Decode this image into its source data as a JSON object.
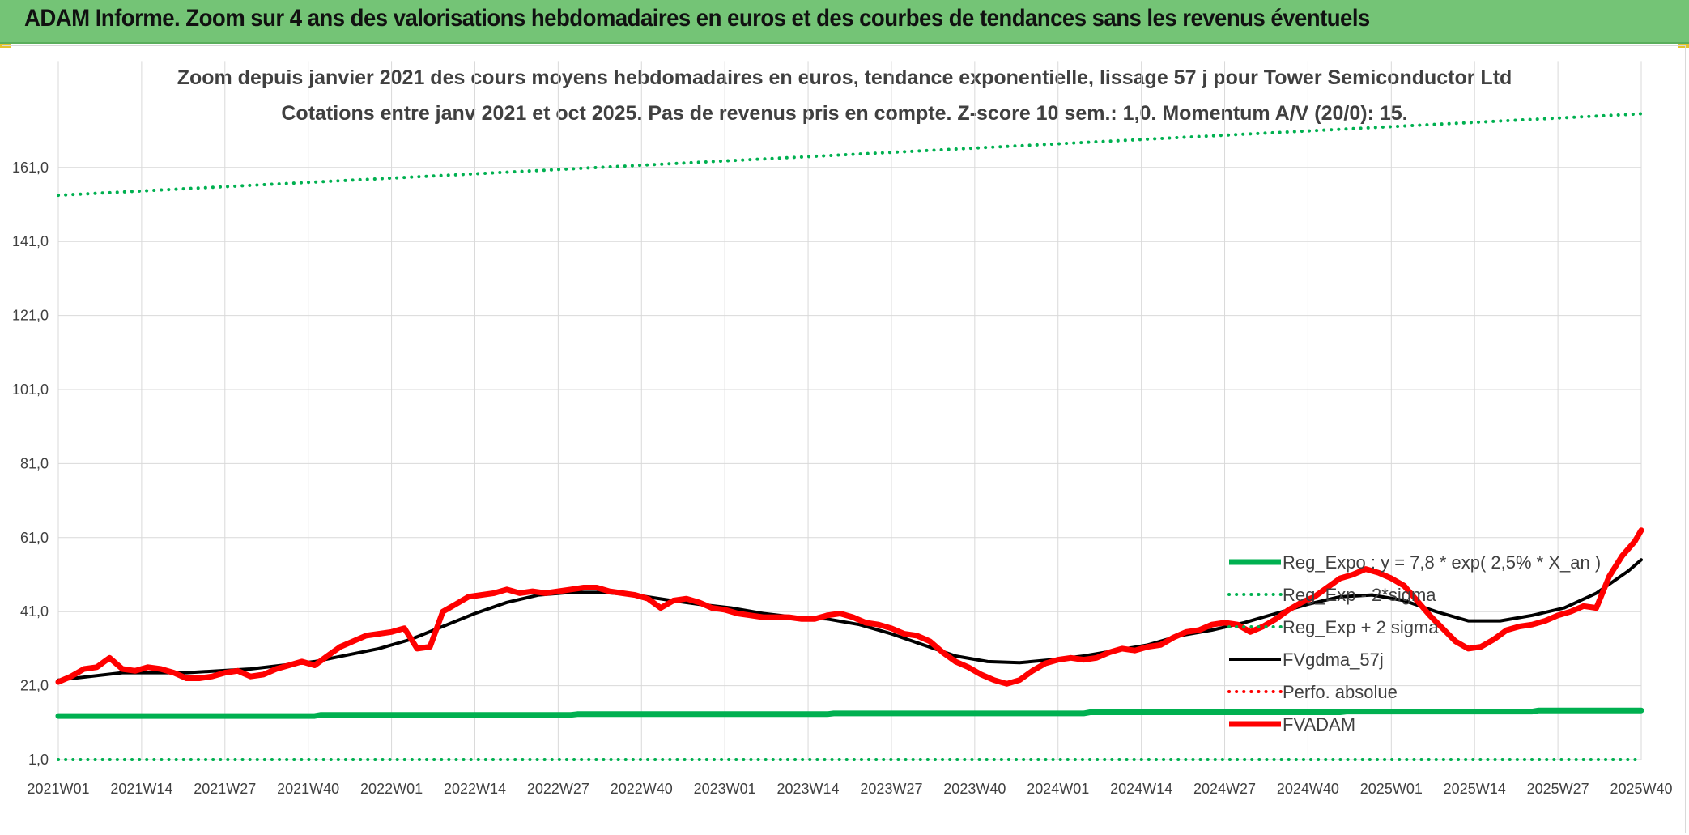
{
  "header": {
    "banner_title": "ADAM Informe. Zoom sur 4 ans des valorisations hebdomadaires en euros et des courbes de tendances sans les revenus éventuels"
  },
  "chart_data": {
    "type": "line",
    "title": "Zoom depuis janvier 2021 des cours moyens hebdomadaires en euros, tendance exponentielle, lissage 57 j pour Tower Semiconductor Ltd",
    "subtitle": "Cotations entre janv 2021 et oct 2025. Pas de revenus pris en compte. Z-score 10 sem.: 1,0. Momentum A/V (20/0): 15.",
    "xlabel": "",
    "ylabel": "",
    "ylim": [
      1,
      181
    ],
    "yticks": [
      1,
      21,
      41,
      61,
      81,
      101,
      121,
      141,
      161
    ],
    "ytick_labels": [
      "1,0",
      "21,0",
      "41,0",
      "61,0",
      "81,0",
      "101,0",
      "121,0",
      "141,0",
      "161,0"
    ],
    "x_count": 248,
    "xtick_labels": [
      "2021W01",
      "2021W14",
      "2021W27",
      "2021W40",
      "2022W01",
      "2022W14",
      "2022W27",
      "2022W40",
      "2023W01",
      "2023W14",
      "2023W27",
      "2023W40",
      "2024W01",
      "2024W14",
      "2024W27",
      "2024W40",
      "2025W01",
      "2025W14",
      "2025W27",
      "2025W40"
    ],
    "xtick_index": [
      0,
      13,
      26,
      39,
      52,
      65,
      78,
      91,
      104,
      117,
      130,
      143,
      156,
      169,
      182,
      195,
      208,
      221,
      234,
      247
    ],
    "legend_position": "bottom-right",
    "series": [
      {
        "name": "Reg_Expo : y = 7,8 * exp( 2,5% *  X_an )",
        "color": "#00b050",
        "style": "solid",
        "width": 7,
        "x": [
          0,
          40,
          41,
          80,
          81,
          120,
          121,
          160,
          161,
          200,
          201,
          230,
          231,
          247
        ],
        "values": [
          12.8,
          12.8,
          13.1,
          13.1,
          13.3,
          13.3,
          13.5,
          13.5,
          13.8,
          13.8,
          14.0,
          14.0,
          14.3,
          14.3
        ]
      },
      {
        "name": "Reg_Exp - 2*sigma",
        "color": "#00b050",
        "style": "dotted",
        "width": 4,
        "x": [
          0,
          247
        ],
        "values": [
          1,
          1
        ]
      },
      {
        "name": "Reg_Exp + 2 sigma",
        "color": "#00b050",
        "style": "dotted",
        "width": 4,
        "x": [
          0,
          247
        ],
        "values": [
          153.5,
          175.5
        ]
      },
      {
        "name": "FVgdma_57j",
        "color": "#000000",
        "style": "solid",
        "width": 4,
        "x": [
          0,
          10,
          20,
          30,
          40,
          50,
          55,
          60,
          65,
          70,
          75,
          80,
          85,
          90,
          95,
          100,
          105,
          110,
          115,
          120,
          125,
          130,
          135,
          140,
          145,
          150,
          155,
          160,
          165,
          170,
          175,
          180,
          185,
          190,
          195,
          200,
          205,
          210,
          215,
          220,
          225,
          230,
          235,
          240,
          245,
          247
        ],
        "values": [
          22.5,
          24.5,
          24.5,
          25.5,
          27.5,
          31,
          33.5,
          37,
          40.5,
          43.5,
          45.5,
          46.2,
          46.2,
          45.5,
          44.2,
          43,
          42,
          40.5,
          39.5,
          39,
          37.5,
          35,
          32,
          29,
          27.5,
          27.2,
          28,
          29,
          30.5,
          32,
          34.5,
          36,
          38,
          40.5,
          43,
          45,
          45.5,
          44,
          41,
          38.5,
          38.5,
          40,
          42,
          46,
          52,
          55
        ]
      },
      {
        "name": "Perfo. absolue",
        "color": "#ff0000",
        "style": "dotted",
        "width": 4,
        "x": [],
        "values": []
      },
      {
        "name": "FVADAM",
        "color": "#ff0000",
        "style": "solid",
        "width": 7,
        "x": [
          0,
          2,
          4,
          6,
          8,
          10,
          12,
          14,
          16,
          18,
          20,
          22,
          24,
          26,
          28,
          30,
          32,
          34,
          36,
          38,
          40,
          42,
          44,
          46,
          48,
          50,
          52,
          54,
          56,
          58,
          60,
          62,
          64,
          66,
          68,
          70,
          72,
          74,
          76,
          78,
          80,
          82,
          84,
          86,
          88,
          90,
          92,
          94,
          96,
          98,
          100,
          102,
          104,
          106,
          108,
          110,
          112,
          114,
          116,
          118,
          120,
          122,
          124,
          126,
          128,
          130,
          132,
          134,
          136,
          138,
          140,
          142,
          144,
          146,
          148,
          150,
          152,
          154,
          156,
          158,
          160,
          162,
          164,
          166,
          168,
          170,
          172,
          174,
          176,
          178,
          180,
          182,
          184,
          186,
          188,
          190,
          192,
          194,
          196,
          198,
          200,
          202,
          204,
          206,
          208,
          210,
          212,
          214,
          216,
          218,
          220,
          222,
          224,
          226,
          228,
          230,
          232,
          234,
          236,
          238,
          240,
          242,
          244,
          246,
          247
        ],
        "values": [
          22,
          23.5,
          25.5,
          26,
          28.5,
          25.5,
          25,
          26,
          25.5,
          24.5,
          23,
          23,
          23.5,
          24.5,
          25,
          23.5,
          24,
          25.5,
          26.5,
          27.5,
          26.5,
          29,
          31.5,
          33,
          34.5,
          35,
          35.5,
          36.5,
          31,
          31.5,
          41,
          43,
          45,
          45.5,
          46,
          47,
          46,
          46.5,
          46,
          46.5,
          47,
          47.5,
          47.5,
          46.5,
          46,
          45.5,
          44.5,
          42,
          44,
          44.5,
          43.5,
          42,
          41.5,
          40.5,
          40,
          39.5,
          39.5,
          39.5,
          39,
          39,
          40,
          40.5,
          39.5,
          38,
          37.5,
          36.5,
          35,
          34.5,
          33,
          30,
          27.5,
          26,
          24,
          22.5,
          21.5,
          22.5,
          25,
          27,
          28,
          28.5,
          28,
          28.5,
          30,
          31,
          30.5,
          31.5,
          32,
          34,
          35.5,
          36,
          37.5,
          38,
          37.5,
          35.5,
          37,
          39,
          41.5,
          43.5,
          45,
          47.5,
          50,
          51,
          52.5,
          51.5,
          50,
          48,
          44,
          40,
          36.5,
          33,
          31,
          31.5,
          33.5,
          36,
          37,
          37.5,
          38.5,
          40,
          41,
          42.5,
          42,
          50.5,
          56,
          60,
          63
        ]
      }
    ],
    "legend": [
      "Reg_Expo : y = 7,8 * exp( 2,5% *  X_an )",
      "Reg_Exp - 2*sigma",
      "Reg_Exp + 2 sigma",
      "FVgdma_57j",
      "Perfo. absolue",
      "FVADAM"
    ]
  }
}
